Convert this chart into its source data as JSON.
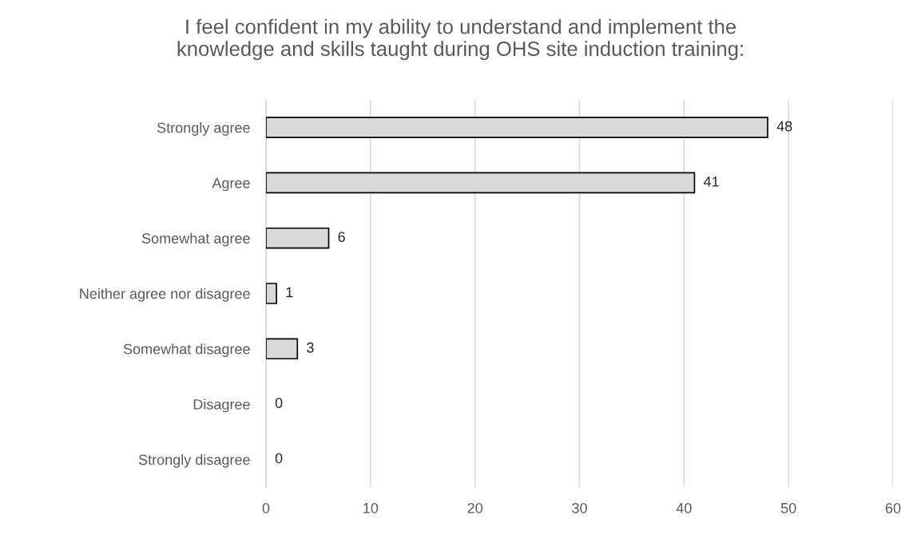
{
  "chart_data": {
    "type": "bar",
    "orientation": "horizontal",
    "title": "I feel confident in my ability to understand and implement the\nknowledge and skills taught during OHS site induction training:",
    "categories": [
      "Strongly agree",
      "Agree",
      "Somewhat agree",
      "Neither agree nor disagree",
      "Somewhat disagree",
      "Disagree",
      "Strongly disagree"
    ],
    "values": [
      48,
      41,
      6,
      1,
      3,
      0,
      0
    ],
    "color": "#d9d9d9",
    "xlim": [
      0,
      60
    ],
    "xticks": [
      0,
      10,
      20,
      30,
      40,
      50,
      60
    ],
    "grid": "x",
    "data_labels": true,
    "legend": false
  }
}
